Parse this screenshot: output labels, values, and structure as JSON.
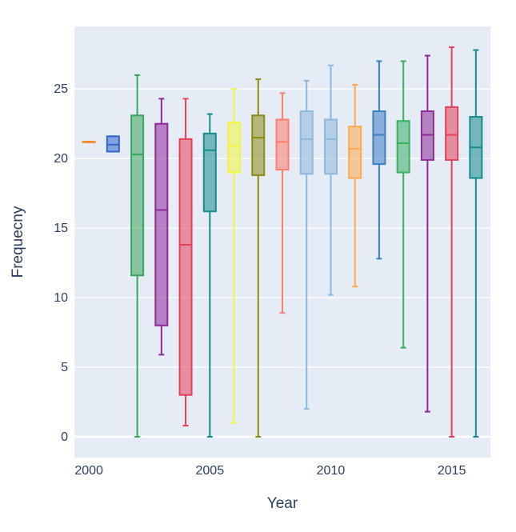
{
  "chart_data": {
    "type": "box",
    "xlabel": "Year",
    "ylabel": "Frequecny",
    "xlim": [
      1999.4,
      2016.6
    ],
    "ylim": [
      -1.5,
      29.5
    ],
    "x_ticks": [
      2000,
      2005,
      2010,
      2015
    ],
    "y_ticks": [
      0,
      5,
      10,
      15,
      20,
      25
    ],
    "grid": true,
    "legend": "none",
    "background_color": "#e5ecf6",
    "series": [
      {
        "x": 2000,
        "min": 21.2,
        "q1": 21.2,
        "median": 21.2,
        "q3": 21.2,
        "max": 21.2,
        "color": "#F58518"
      },
      {
        "x": 2001,
        "min": 20.5,
        "q1": 20.5,
        "median": 21.0,
        "q3": 21.6,
        "max": 21.6,
        "color": "#3366CC"
      },
      {
        "x": 2002,
        "min": 0.0,
        "q1": 11.6,
        "median": 20.3,
        "q3": 23.1,
        "max": 26.0,
        "color": "#3AA55C"
      },
      {
        "x": 2003,
        "min": 5.9,
        "q1": 8.0,
        "median": 16.3,
        "q3": 22.5,
        "max": 24.3,
        "color": "#8E2A99"
      },
      {
        "x": 2004,
        "min": 0.8,
        "q1": 3.0,
        "median": 13.8,
        "q3": 21.4,
        "max": 24.3,
        "color": "#E4405A"
      },
      {
        "x": 2005,
        "min": 0.0,
        "q1": 16.2,
        "median": 20.6,
        "q3": 21.8,
        "max": 23.2,
        "color": "#168C8C"
      },
      {
        "x": 2006,
        "min": 1.0,
        "q1": 19.0,
        "median": 20.9,
        "q3": 22.6,
        "max": 25.0,
        "color": "#F3F542"
      },
      {
        "x": 2007,
        "min": 0.0,
        "q1": 18.8,
        "median": 21.5,
        "q3": 23.1,
        "max": 25.7,
        "color": "#8C8C14"
      },
      {
        "x": 2008,
        "min": 8.9,
        "q1": 19.2,
        "median": 21.2,
        "q3": 22.8,
        "max": 24.7,
        "color": "#FF7C6E"
      },
      {
        "x": 2009,
        "min": 2.0,
        "q1": 18.9,
        "median": 21.4,
        "q3": 23.4,
        "max": 25.6,
        "color": "#8CB8DB"
      },
      {
        "x": 2010,
        "min": 10.2,
        "q1": 18.9,
        "median": 21.4,
        "q3": 22.8,
        "max": 26.7,
        "color": "#8CB8DB"
      },
      {
        "x": 2011,
        "min": 10.8,
        "q1": 18.6,
        "median": 20.7,
        "q3": 22.3,
        "max": 25.3,
        "color": "#FFA94D"
      },
      {
        "x": 2012,
        "min": 12.8,
        "q1": 19.6,
        "median": 21.7,
        "q3": 23.4,
        "max": 27.0,
        "color": "#3C7FC2"
      },
      {
        "x": 2013,
        "min": 6.4,
        "q1": 19.0,
        "median": 21.1,
        "q3": 22.7,
        "max": 27.0,
        "color": "#3AB060"
      },
      {
        "x": 2014,
        "min": 1.8,
        "q1": 19.9,
        "median": 21.7,
        "q3": 23.4,
        "max": 27.4,
        "color": "#8E2A99"
      },
      {
        "x": 2015,
        "min": 0.0,
        "q1": 19.9,
        "median": 21.7,
        "q3": 23.7,
        "max": 28.0,
        "color": "#E4405A"
      },
      {
        "x": 2016,
        "min": 0.0,
        "q1": 18.6,
        "median": 20.8,
        "q3": 23.0,
        "max": 27.8,
        "color": "#168C8C"
      }
    ]
  }
}
